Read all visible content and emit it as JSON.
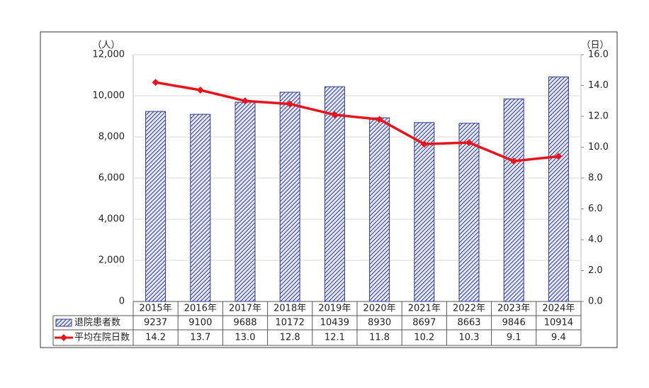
{
  "chart_data": {
    "type": "bar",
    "y_label": "（人）",
    "y2_label": "（日）",
    "categories": [
      "2015年",
      "2016年",
      "2017年",
      "2018年",
      "2019年",
      "2020年",
      "2021年",
      "2022年",
      "2023年",
      "2024年"
    ],
    "series": [
      {
        "name": "退院患者数",
        "type": "bar",
        "color": "#2e3a8c",
        "values": [
          9237,
          9100,
          9688,
          10172,
          10439,
          8930,
          8697,
          8663,
          9846,
          10914
        ]
      },
      {
        "name": "平均在院日数",
        "type": "line",
        "axis": "y2",
        "color": "#e8141b",
        "values": [
          14.2,
          13.7,
          13.0,
          12.8,
          12.1,
          11.8,
          10.2,
          10.3,
          9.1,
          9.4
        ],
        "value_labels": [
          "14.2",
          "13.7",
          "13.0",
          "12.8",
          "12.1",
          "11.8",
          "10.2",
          "10.3",
          "9.1",
          "9.4"
        ]
      }
    ],
    "ylim": [
      0,
      12000
    ],
    "yticks": [
      0,
      {
        "value": 2000,
        "label": "2,000"
      },
      {
        "value": 4000,
        "label": "4,000"
      },
      {
        "value": 6000,
        "label": "6,000"
      },
      {
        "value": 8000,
        "label": "8,000"
      },
      {
        "value": 10000,
        "label": "10,000"
      },
      {
        "value": 12000,
        "label": "12,000"
      }
    ],
    "y2lim": [
      0,
      16
    ],
    "y2ticks": [
      {
        "value": 0,
        "label": "0.0"
      },
      {
        "value": 2,
        "label": "2.0"
      },
      {
        "value": 4,
        "label": "4.0"
      },
      {
        "value": 6,
        "label": "6.0"
      },
      {
        "value": 8,
        "label": "8.0"
      },
      {
        "value": 10,
        "label": "10.0"
      },
      {
        "value": 12,
        "label": "12.0"
      },
      {
        "value": 14,
        "label": "14.0"
      },
      {
        "value": 16,
        "label": "16.0"
      }
    ],
    "grid": true
  }
}
